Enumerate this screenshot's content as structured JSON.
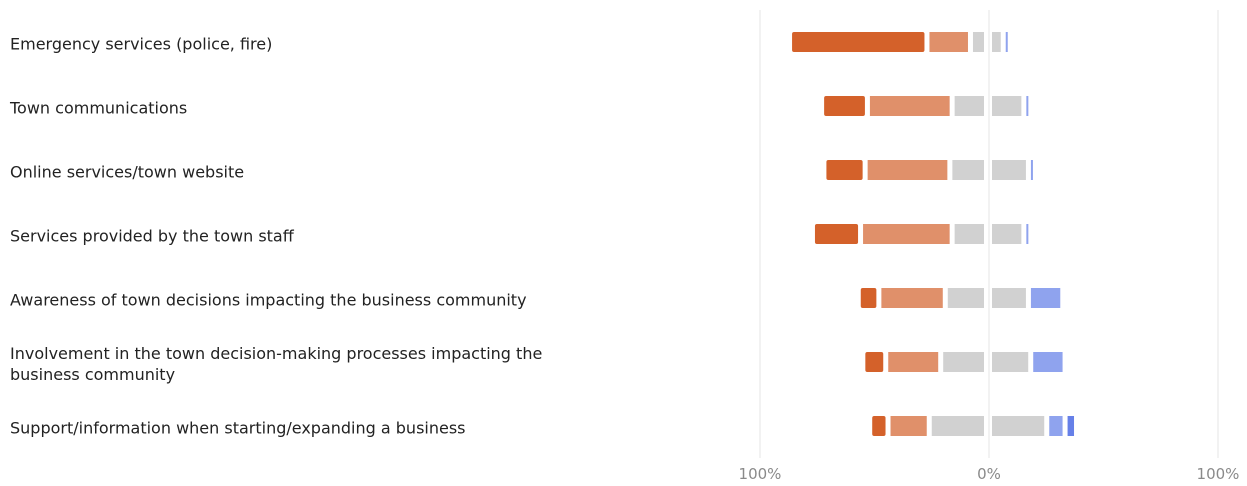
{
  "chart_data": {
    "type": "bar",
    "subtype": "diverging-stacked-horizontal",
    "title": "",
    "xlabel": "",
    "ylabel": "",
    "xlim": [
      -100,
      100
    ],
    "xticks": [
      "100%",
      "0%",
      "100%"
    ],
    "grid": true,
    "legend": "none",
    "categories": [
      "Emergency services (police, fire)",
      "Town communications",
      "Online services/town website",
      "Services provided by the town staff",
      "Awareness of town decisions impacting the business community",
      "Involvement in the town decision-making processes impacting the business community",
      "Support/information when starting/expanding a business"
    ],
    "series": [
      {
        "color": "#d4612a",
        "side": "negative",
        "values": [
          60,
          20,
          18,
          21,
          9,
          10,
          8
        ]
      },
      {
        "color": "#e0906a",
        "side": "negative",
        "values": [
          19,
          37,
          37,
          40,
          29,
          24,
          18
        ]
      },
      {
        "color": "#d1d1d1",
        "side": "negative",
        "values": [
          7,
          15,
          16,
          15,
          18,
          20,
          25
        ]
      },
      {
        "color": "#d1d1d1",
        "side": "positive",
        "values": [
          6,
          15,
          17,
          15,
          17,
          18,
          25
        ]
      },
      {
        "color": "#8fa3ee",
        "side": "positive",
        "values": [
          1,
          2,
          2,
          1,
          15,
          15,
          8
        ]
      },
      {
        "color": "#6680e8",
        "side": "positive",
        "values": [
          0,
          0,
          0,
          0,
          0,
          0,
          5
        ]
      }
    ]
  }
}
